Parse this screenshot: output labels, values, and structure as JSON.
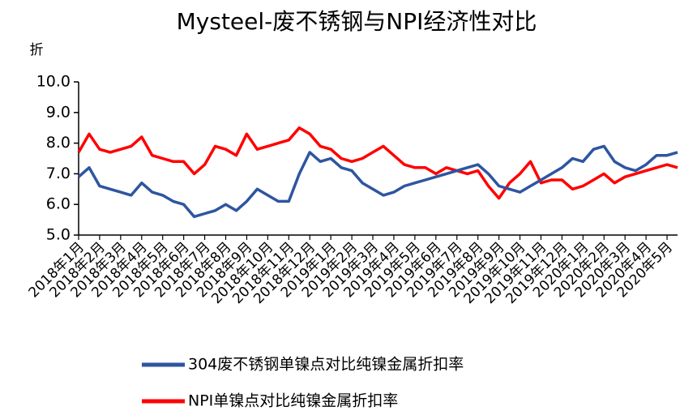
{
  "chart_data": {
    "type": "line",
    "title": "Mysteel-废不锈钢与NPI经济性对比",
    "y_label": "折",
    "categories": [
      "2018年1月",
      null,
      "2018年2月",
      null,
      "2018年3月",
      null,
      "2018年4月",
      null,
      "2018年5月",
      null,
      "2018年6月",
      null,
      "2018年7月",
      null,
      "2018年8月",
      null,
      "2018年9月",
      null,
      "2018年10月",
      null,
      "2018年11月",
      null,
      "2018年12月",
      null,
      "2019年1月",
      null,
      "2019年2月",
      null,
      "2019年3月",
      null,
      "2019年4月",
      null,
      "2019年5月",
      null,
      "2019年6月",
      null,
      "2019年7月",
      null,
      "2019年8月",
      null,
      "2019年9月",
      null,
      "2019年10月",
      null,
      "2019年11月",
      null,
      "2019年12月",
      null,
      "2020年1月",
      null,
      "2020年2月",
      null,
      "2020年3月",
      null,
      "2020年4月",
      null,
      "2020年5月",
      null
    ],
    "series": [
      {
        "name": "304废不锈钢单镍点对比纯镍金属折扣率",
        "color": "#2e55a0",
        "values": [
          6.9,
          7.2,
          6.6,
          6.5,
          6.4,
          6.3,
          6.7,
          6.4,
          6.3,
          6.1,
          6.0,
          5.6,
          5.7,
          5.8,
          6.0,
          5.8,
          6.1,
          6.5,
          6.3,
          6.1,
          6.1,
          7.0,
          7.7,
          7.4,
          7.5,
          7.2,
          7.1,
          6.7,
          6.5,
          6.3,
          6.4,
          6.6,
          6.7,
          6.8,
          6.9,
          7.0,
          7.1,
          7.2,
          7.3,
          7.0,
          6.6,
          6.5,
          6.4,
          6.6,
          6.8,
          7.0,
          7.2,
          7.5,
          7.4,
          7.8,
          7.9,
          7.4,
          7.2,
          7.1,
          7.3,
          7.6,
          7.6,
          7.7
        ]
      },
      {
        "name": "NPI单镍点对比纯镍金属折扣率",
        "color": "#ff0000",
        "values": [
          7.7,
          8.3,
          7.8,
          7.7,
          7.8,
          7.9,
          8.2,
          7.6,
          7.5,
          7.4,
          7.4,
          7.0,
          7.3,
          7.9,
          7.8,
          7.6,
          8.3,
          7.8,
          7.9,
          8.0,
          8.1,
          8.5,
          8.3,
          7.9,
          7.8,
          7.5,
          7.4,
          7.5,
          7.7,
          7.9,
          7.6,
          7.3,
          7.2,
          7.2,
          7.0,
          7.2,
          7.1,
          7.0,
          7.1,
          6.6,
          6.2,
          6.7,
          7.0,
          7.4,
          6.7,
          6.8,
          6.8,
          6.5,
          6.6,
          6.8,
          7.0,
          6.7,
          6.9,
          7.0,
          7.1,
          7.2,
          7.3,
          7.2
        ]
      }
    ],
    "ylim": [
      5,
      10
    ],
    "yticks": [
      {
        "value": 5,
        "label": "5.0"
      },
      {
        "value": 6,
        "label": "6.0"
      },
      {
        "value": 7,
        "label": "7.0"
      },
      {
        "value": 8,
        "label": "8.0"
      },
      {
        "value": 9,
        "label": "9.0"
      },
      {
        "value": 10,
        "label": "10.0"
      }
    ],
    "legend": "bottom"
  }
}
